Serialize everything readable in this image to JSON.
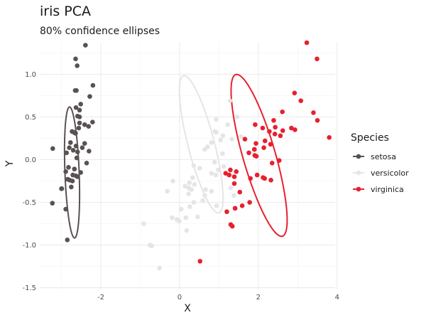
{
  "chart_data": {
    "type": "scatter",
    "title": "iris PCA",
    "subtitle": "80% confidence ellipses",
    "xlabel": "X",
    "ylabel": "Y",
    "xlim": [
      -3.55,
      3.95
    ],
    "ylim": [
      -1.52,
      1.37
    ],
    "x_ticks": [
      -2,
      0,
      2,
      4
    ],
    "x_tick_labels": [
      "-2",
      "0",
      "2",
      "4"
    ],
    "y_ticks": [
      -1.5,
      -1.0,
      -0.5,
      0.0,
      0.5,
      1.0
    ],
    "y_tick_labels": [
      "-1.5",
      "-1.0",
      "-0.5",
      "0.0",
      "0.5",
      "1.0"
    ],
    "grid": true,
    "legend": {
      "title": "Species",
      "position": "right"
    },
    "series": [
      {
        "name": "setosa",
        "color": "#5a5152",
        "points": [
          [
            -2.68,
            0.32
          ],
          [
            -2.71,
            -0.18
          ],
          [
            -2.89,
            -0.14
          ],
          [
            -2.75,
            -0.32
          ],
          [
            -2.73,
            0.33
          ],
          [
            -2.28,
            0.74
          ],
          [
            -2.82,
            -0.09
          ],
          [
            -2.63,
            0.16
          ],
          [
            -2.89,
            -0.58
          ],
          [
            -2.67,
            -0.11
          ],
          [
            -2.51,
            0.65
          ],
          [
            -2.61,
            0.02
          ],
          [
            -2.79,
            -0.24
          ],
          [
            -3.23,
            -0.51
          ],
          [
            -2.64,
            1.18
          ],
          [
            -2.39,
            1.34
          ],
          [
            -2.62,
            0.81
          ],
          [
            -2.65,
            0.31
          ],
          [
            -2.2,
            0.87
          ],
          [
            -2.59,
            0.51
          ],
          [
            -2.31,
            0.39
          ],
          [
            -2.54,
            0.43
          ],
          [
            -3.22,
            0.13
          ],
          [
            -2.3,
            0.1
          ],
          [
            -2.36,
            -0.04
          ],
          [
            -2.51,
            -0.15
          ],
          [
            -2.47,
            0.14
          ],
          [
            -2.56,
            0.37
          ],
          [
            -2.64,
            0.31
          ],
          [
            -2.63,
            -0.19
          ],
          [
            -2.59,
            -0.2
          ],
          [
            -2.41,
            0.41
          ],
          [
            -2.65,
            0.81
          ],
          [
            -2.6,
            1.1
          ],
          [
            -2.67,
            -0.11
          ],
          [
            -2.87,
            0.08
          ],
          [
            -2.63,
            0.61
          ],
          [
            -2.8,
            0.14
          ],
          [
            -2.99,
            -0.34
          ],
          [
            -2.59,
            0.09
          ],
          [
            -2.77,
            0.2
          ],
          [
            -2.85,
            -0.94
          ],
          [
            -3.0,
            -0.34
          ],
          [
            -2.41,
            0.19
          ],
          [
            -2.21,
            0.44
          ],
          [
            -2.72,
            -0.25
          ],
          [
            -2.54,
            0.5
          ],
          [
            -2.84,
            -0.23
          ],
          [
            -2.54,
            0.58
          ],
          [
            -2.7,
            0.11
          ]
        ]
      },
      {
        "name": "versicolor",
        "color": "#e5e5e5",
        "points": [
          [
            1.28,
            0.69
          ],
          [
            0.93,
            0.32
          ],
          [
            1.46,
            0.5
          ],
          [
            0.18,
            -0.83
          ],
          [
            1.09,
            0.07
          ],
          [
            0.64,
            -0.42
          ],
          [
            1.1,
            0.28
          ],
          [
            -0.75,
            -1.0
          ],
          [
            1.04,
            0.23
          ],
          [
            -0.01,
            -0.72
          ],
          [
            -0.51,
            -1.27
          ],
          [
            0.51,
            -0.1
          ],
          [
            0.26,
            -0.55
          ],
          [
            0.98,
            -0.12
          ],
          [
            -0.17,
            -0.25
          ],
          [
            0.93,
            0.47
          ],
          [
            0.66,
            -0.35
          ],
          [
            0.23,
            -0.33
          ],
          [
            0.94,
            -0.54
          ],
          [
            0.04,
            -0.58
          ],
          [
            1.12,
            -0.08
          ],
          [
            0.36,
            -0.07
          ],
          [
            1.3,
            -0.33
          ],
          [
            0.92,
            -0.18
          ],
          [
            0.71,
            0.15
          ],
          [
            0.9,
            0.33
          ],
          [
            1.33,
            0.24
          ],
          [
            1.56,
            0.27
          ],
          [
            0.81,
            -0.16
          ],
          [
            -0.31,
            -0.37
          ],
          [
            -0.07,
            -0.7
          ],
          [
            -0.19,
            -0.68
          ],
          [
            0.14,
            -0.31
          ],
          [
            1.38,
            -0.42
          ],
          [
            0.59,
            -0.48
          ],
          [
            0.81,
            0.2
          ],
          [
            1.22,
            0.41
          ],
          [
            0.81,
            -0.37
          ],
          [
            0.25,
            -0.27
          ],
          [
            0.16,
            -0.68
          ],
          [
            0.46,
            -0.67
          ],
          [
            0.89,
            -0.03
          ],
          [
            0.23,
            -0.4
          ],
          [
            -0.71,
            -1.01
          ],
          [
            0.36,
            -0.5
          ],
          [
            0.33,
            -0.21
          ],
          [
            0.38,
            -0.29
          ],
          [
            0.64,
            0.12
          ],
          [
            -0.91,
            -0.75
          ],
          [
            0.3,
            -0.35
          ]
        ]
      },
      {
        "name": "virginica",
        "color": "#e8202e",
        "points": [
          [
            2.53,
            -0.01
          ],
          [
            1.41,
            -0.57
          ],
          [
            2.62,
            0.34
          ],
          [
            1.97,
            -0.18
          ],
          [
            2.35,
            -0.04
          ],
          [
            3.4,
            0.55
          ],
          [
            0.52,
            -1.19
          ],
          [
            2.93,
            0.35
          ],
          [
            2.32,
            -0.24
          ],
          [
            2.92,
            0.78
          ],
          [
            1.66,
            0.24
          ],
          [
            1.8,
            -0.22
          ],
          [
            2.17,
            0.22
          ],
          [
            1.34,
            -0.78
          ],
          [
            1.59,
            -0.54
          ],
          [
            1.9,
            0.12
          ],
          [
            1.95,
            0.04
          ],
          [
            3.49,
            1.18
          ],
          [
            3.8,
            0.26
          ],
          [
            1.3,
            -0.76
          ],
          [
            2.43,
            0.38
          ],
          [
            1.2,
            -0.61
          ],
          [
            3.5,
            0.46
          ],
          [
            1.39,
            -0.2
          ],
          [
            2.28,
            0.33
          ],
          [
            2.61,
            0.56
          ],
          [
            1.26,
            -0.18
          ],
          [
            1.29,
            -0.12
          ],
          [
            2.12,
            -0.21
          ],
          [
            2.39,
            0.46
          ],
          [
            2.84,
            0.37
          ],
          [
            3.23,
            1.37
          ],
          [
            2.16,
            -0.22
          ],
          [
            1.44,
            -0.14
          ],
          [
            1.78,
            -0.5
          ],
          [
            3.08,
            0.69
          ],
          [
            2.14,
            0.14
          ],
          [
            1.91,
            0.05
          ],
          [
            1.17,
            -0.16
          ],
          [
            2.11,
            0.37
          ],
          [
            2.31,
            0.18
          ],
          [
            1.92,
            0.41
          ],
          [
            1.41,
            -0.57
          ],
          [
            2.56,
            0.28
          ],
          [
            2.42,
            0.3
          ],
          [
            1.94,
            0.19
          ],
          [
            1.53,
            -0.38
          ],
          [
            1.76,
            0.08
          ],
          [
            1.9,
            0.12
          ],
          [
            1.39,
            -0.28
          ]
        ]
      }
    ],
    "ellipses": [
      {
        "series": "setosa",
        "center": [
          -2.73,
          -0.15
        ],
        "semi_axis_major": 0.77,
        "semi_axis_minor": 0.18,
        "angle_deg": 95
      },
      {
        "series": "versicolor",
        "center": [
          0.55,
          0.18
        ],
        "semi_axis_major": 0.93,
        "semi_axis_minor": 0.3,
        "angle_deg": 122
      },
      {
        "series": "virginica",
        "center": [
          2.02,
          0.05
        ],
        "semi_axis_major": 1.13,
        "semi_axis_minor": 0.36,
        "angle_deg": 125
      }
    ]
  }
}
